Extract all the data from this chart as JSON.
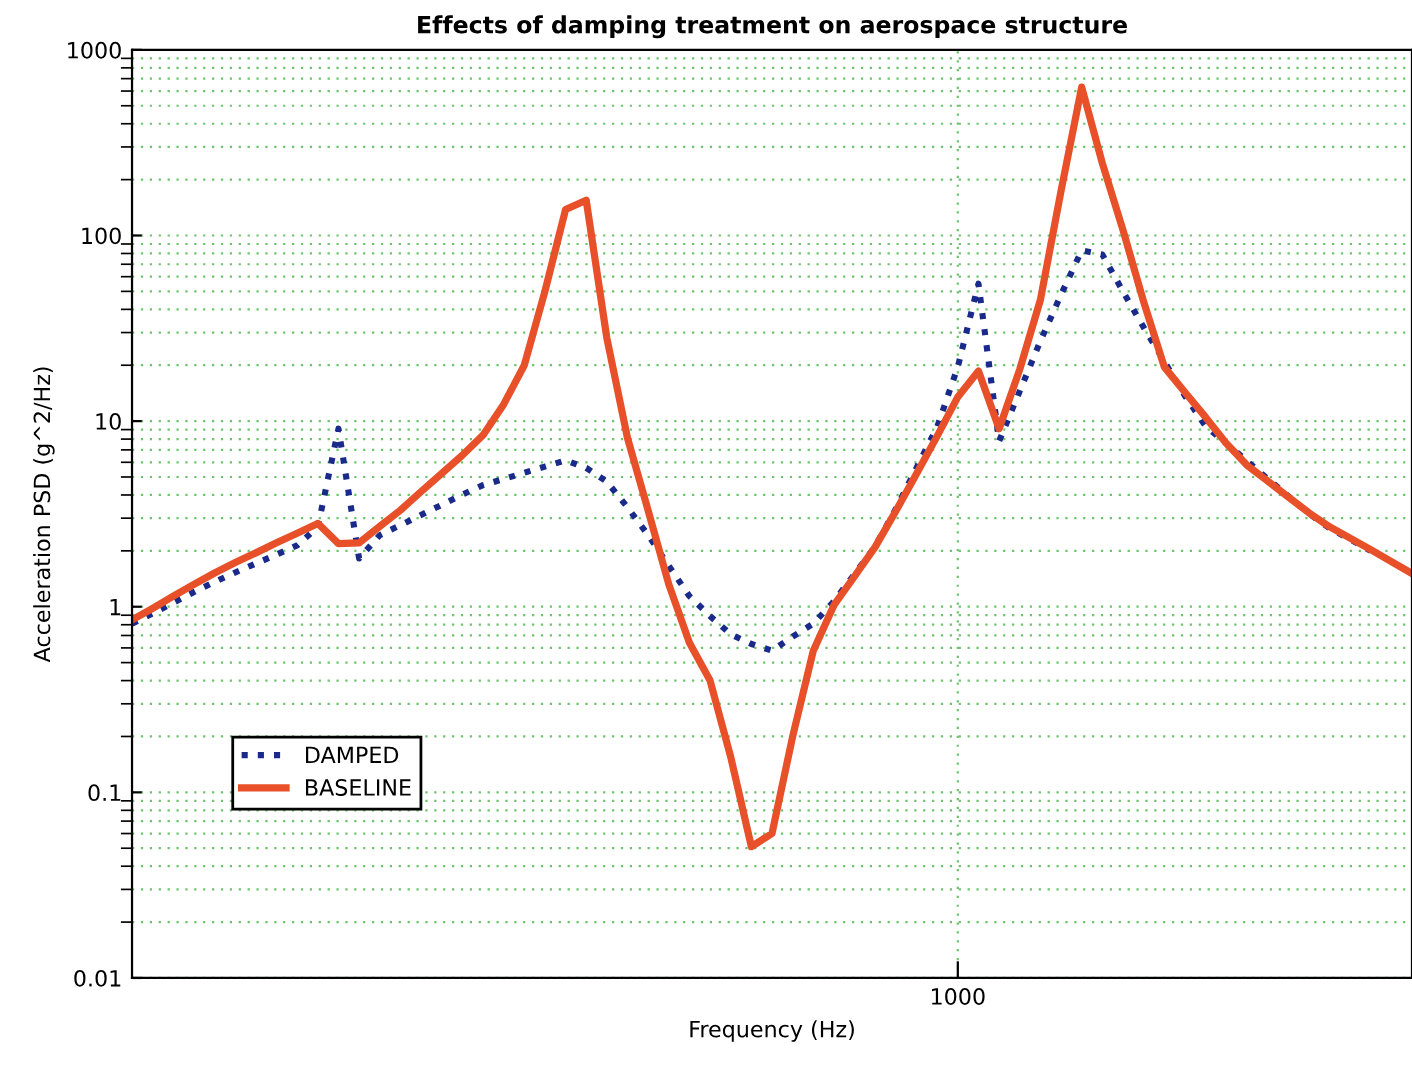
{
  "chart_data": {
    "type": "line",
    "title": "Effects of damping treatment on aerospace structure",
    "xlabel": "Frequency (Hz)",
    "ylabel": "Acceleration PSD (g^2/Hz)",
    "log": true,
    "categories": [
      null,
      null,
      null,
      null,
      null,
      null,
      null,
      null,
      null,
      null,
      null,
      null,
      null,
      null,
      null,
      null,
      null,
      null,
      null,
      null,
      null,
      null,
      null,
      null,
      null,
      null,
      null,
      null,
      null,
      null,
      null,
      null,
      null,
      null,
      null,
      null,
      null,
      null,
      null,
      null,
      "1000",
      null,
      null,
      null,
      null,
      null,
      null,
      null,
      null,
      null,
      null,
      null,
      null,
      null,
      null,
      null,
      null,
      null,
      null,
      null,
      null,
      null,
      null
    ],
    "ylim": [
      0.01,
      1000
    ],
    "yticks": [
      0.01,
      0.1,
      1,
      10,
      100,
      1000
    ],
    "grid": true,
    "legend": "bottom left",
    "series": [
      {
        "name": "DAMPED",
        "color": "#1a2a8a",
        "line_style": "dotted",
        "values": [
          0.81,
          0.92,
          1.05,
          1.2,
          1.36,
          1.53,
          1.71,
          1.91,
          2.14,
          2.69,
          9.1,
          1.82,
          2.43,
          2.75,
          3.12,
          3.54,
          4.02,
          4.52,
          4.88,
          5.27,
          5.69,
          6.15,
          5.6,
          4.72,
          3.43,
          2.43,
          1.66,
          1.14,
          0.89,
          0.71,
          0.63,
          0.58,
          0.69,
          0.81,
          1.07,
          1.5,
          2.12,
          3.37,
          5.6,
          9.3,
          19.6,
          55,
          7.8,
          14.5,
          27,
          48,
          83,
          79,
          50,
          32,
          21,
          13.7,
          9.4,
          7.6,
          6.1,
          4.9,
          3.95,
          3.18,
          2.65,
          2.31,
          2.0,
          null,
          null
        ]
      },
      {
        "name": "BASELINE",
        "color": "#e8502a",
        "line_style": "solid",
        "values": [
          0.85,
          0.98,
          1.14,
          1.32,
          1.52,
          1.73,
          1.95,
          2.21,
          2.49,
          2.81,
          2.19,
          2.21,
          2.71,
          3.31,
          4.17,
          5.22,
          6.55,
          8.4,
          12.3,
          20,
          50,
          138,
          155,
          28,
          8.1,
          3.3,
          1.32,
          0.64,
          0.4,
          0.155,
          0.051,
          0.06,
          0.2,
          0.58,
          1.02,
          1.46,
          2.1,
          3.28,
          5.2,
          8.3,
          13.5,
          18.6,
          9.1,
          19,
          45,
          174,
          630,
          245,
          107,
          44,
          19.6,
          14.3,
          10.5,
          7.6,
          5.8,
          4.76,
          3.91,
          3.21,
          2.7,
          2.34,
          2.03,
          1.75,
          1.51
        ]
      }
    ]
  }
}
